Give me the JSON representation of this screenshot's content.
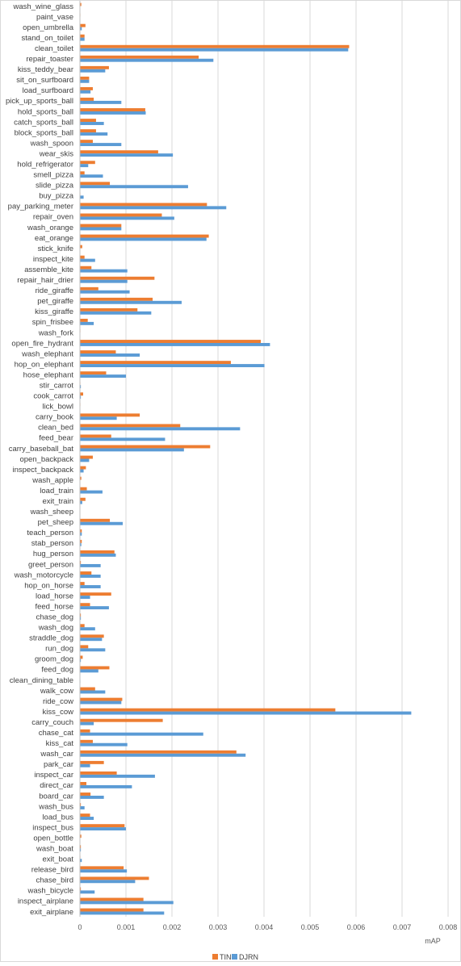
{
  "chart_data": {
    "type": "bar",
    "orientation": "horizontal",
    "xlabel": "mAP",
    "xlim": [
      0,
      0.008
    ],
    "x_ticks": [
      "0",
      "0.001",
      "0.002",
      "0.003",
      "0.004",
      "0.005",
      "0.006",
      "0.007",
      "0.008"
    ],
    "grid": true,
    "legend_position": "bottom",
    "categories": [
      "wash_wine_glass",
      "paint_vase",
      "open_umbrella",
      "stand_on_toilet",
      "clean_toilet",
      "repair_toaster",
      "kiss_teddy_bear",
      "sit_on_surfboard",
      "load_surfboard",
      "pick_up_sports_ball",
      "hold_sports_ball",
      "catch_sports_ball",
      "block_sports_ball",
      "wash_spoon",
      "wear_skis",
      "hold_refrigerator",
      "smell_pizza",
      "slide_pizza",
      "buy_pizza",
      "pay_parking_meter",
      "repair_oven",
      "wash_orange",
      "eat_orange",
      "stick_knife",
      "inspect_kite",
      "assemble_kite",
      "repair_hair_drier",
      "ride_giraffe",
      "pet_giraffe",
      "kiss_giraffe",
      "spin_frisbee",
      "wash_fork",
      "open_fire_hydrant",
      "wash_elephant",
      "hop_on_elephant",
      "hose_elephant",
      "stir_carrot",
      "cook_carrot",
      "lick_bowl",
      "carry_book",
      "clean_bed",
      "feed_bear",
      "carry_baseball_bat",
      "open_backpack",
      "inspect_backpack",
      "wash_apple",
      "load_train",
      "exit_train",
      "wash_sheep",
      "pet_sheep",
      "teach_person",
      "stab_person",
      "hug_person",
      "greet_person",
      "wash_motorcycle",
      "hop_on_horse",
      "load_horse",
      "feed_horse",
      "chase_dog",
      "wash_dog",
      "straddle_dog",
      "run_dog",
      "groom_dog",
      "feed_dog",
      "clean_dining_table",
      "walk_cow",
      "ride_cow",
      "kiss_cow",
      "carry_couch",
      "chase_cat",
      "kiss_cat",
      "wash_car",
      "park_car",
      "inspect_car",
      "direct_car",
      "board_car",
      "wash_bus",
      "load_bus",
      "inspect_bus",
      "open_bottle",
      "wash_boat",
      "exit_boat",
      "release_bird",
      "chase_bird",
      "wash_bicycle",
      "inspect_airplane",
      "exit_airplane"
    ],
    "series": [
      {
        "name": "TIN",
        "color": "#ED7D31",
        "values": [
          3e-05,
          1e-05,
          0.00012,
          0.0001,
          0.00585,
          0.00258,
          0.00063,
          0.0002,
          0.00028,
          0.0003,
          0.00142,
          0.00035,
          0.00035,
          0.00028,
          0.0017,
          0.00033,
          0.0001,
          0.00065,
          1e-05,
          0.00276,
          0.00178,
          0.0009,
          0.0028,
          5e-05,
          0.0001,
          0.00025,
          0.00162,
          0.0004,
          0.00158,
          0.00125,
          0.00017,
          1e-05,
          0.00393,
          0.00078,
          0.00328,
          0.00057,
          1e-05,
          7e-05,
          1e-05,
          0.0013,
          0.00218,
          0.00068,
          0.00283,
          0.00028,
          0.00013,
          3e-05,
          0.00015,
          0.00012,
          0,
          0.00065,
          4e-05,
          4e-05,
          0.00075,
          2e-05,
          0.00025,
          0.0001,
          0.00068,
          0.00022,
          2e-05,
          0.0001,
          0.00052,
          0.00018,
          6e-05,
          0.00064,
          0,
          0.00033,
          0.00092,
          0.00555,
          0.0018,
          0.00022,
          0.00028,
          0.0034,
          0.00052,
          0.0008,
          0.00014,
          0.00023,
          2e-05,
          0.00022,
          0.00097,
          3e-05,
          2e-05,
          1e-05,
          0.00095,
          0.0015,
          2e-05,
          0.00138,
          0.00138
        ]
      },
      {
        "name": "DJRN",
        "color": "#5B9BD5",
        "values": [
          0,
          0,
          4e-05,
          0.0001,
          0.00583,
          0.0029,
          0.00055,
          0.0002,
          0.00023,
          0.0009,
          0.00143,
          0.00052,
          0.0006,
          0.0009,
          0.00202,
          0.00018,
          0.0005,
          0.00235,
          8e-05,
          0.00318,
          0.00205,
          0.0009,
          0.00275,
          0,
          0.00033,
          0.00103,
          0.00103,
          0.00108,
          0.00221,
          0.00155,
          0.0003,
          0,
          0.00413,
          0.0013,
          0.00401,
          0.001,
          2e-05,
          2e-05,
          0,
          0.0008,
          0.00348,
          0.00185,
          0.00226,
          0.0002,
          8e-05,
          0,
          0.00049,
          5e-05,
          0,
          0.00093,
          4e-05,
          3e-05,
          0.00078,
          0.00045,
          0.00045,
          0.00045,
          0.00022,
          0.00063,
          2e-05,
          0.00033,
          0.00048,
          0.00055,
          2e-05,
          0.0004,
          1e-05,
          0.00055,
          0.0009,
          0.0072,
          0.0003,
          0.00268,
          0.00103,
          0.0036,
          0.00022,
          0.00163,
          0.00113,
          0.00052,
          0.0001,
          0.0003,
          0.001,
          0,
          2e-05,
          4e-05,
          0.00102,
          0.0012,
          0.00032,
          0.00203,
          0.00183
        ]
      }
    ]
  }
}
